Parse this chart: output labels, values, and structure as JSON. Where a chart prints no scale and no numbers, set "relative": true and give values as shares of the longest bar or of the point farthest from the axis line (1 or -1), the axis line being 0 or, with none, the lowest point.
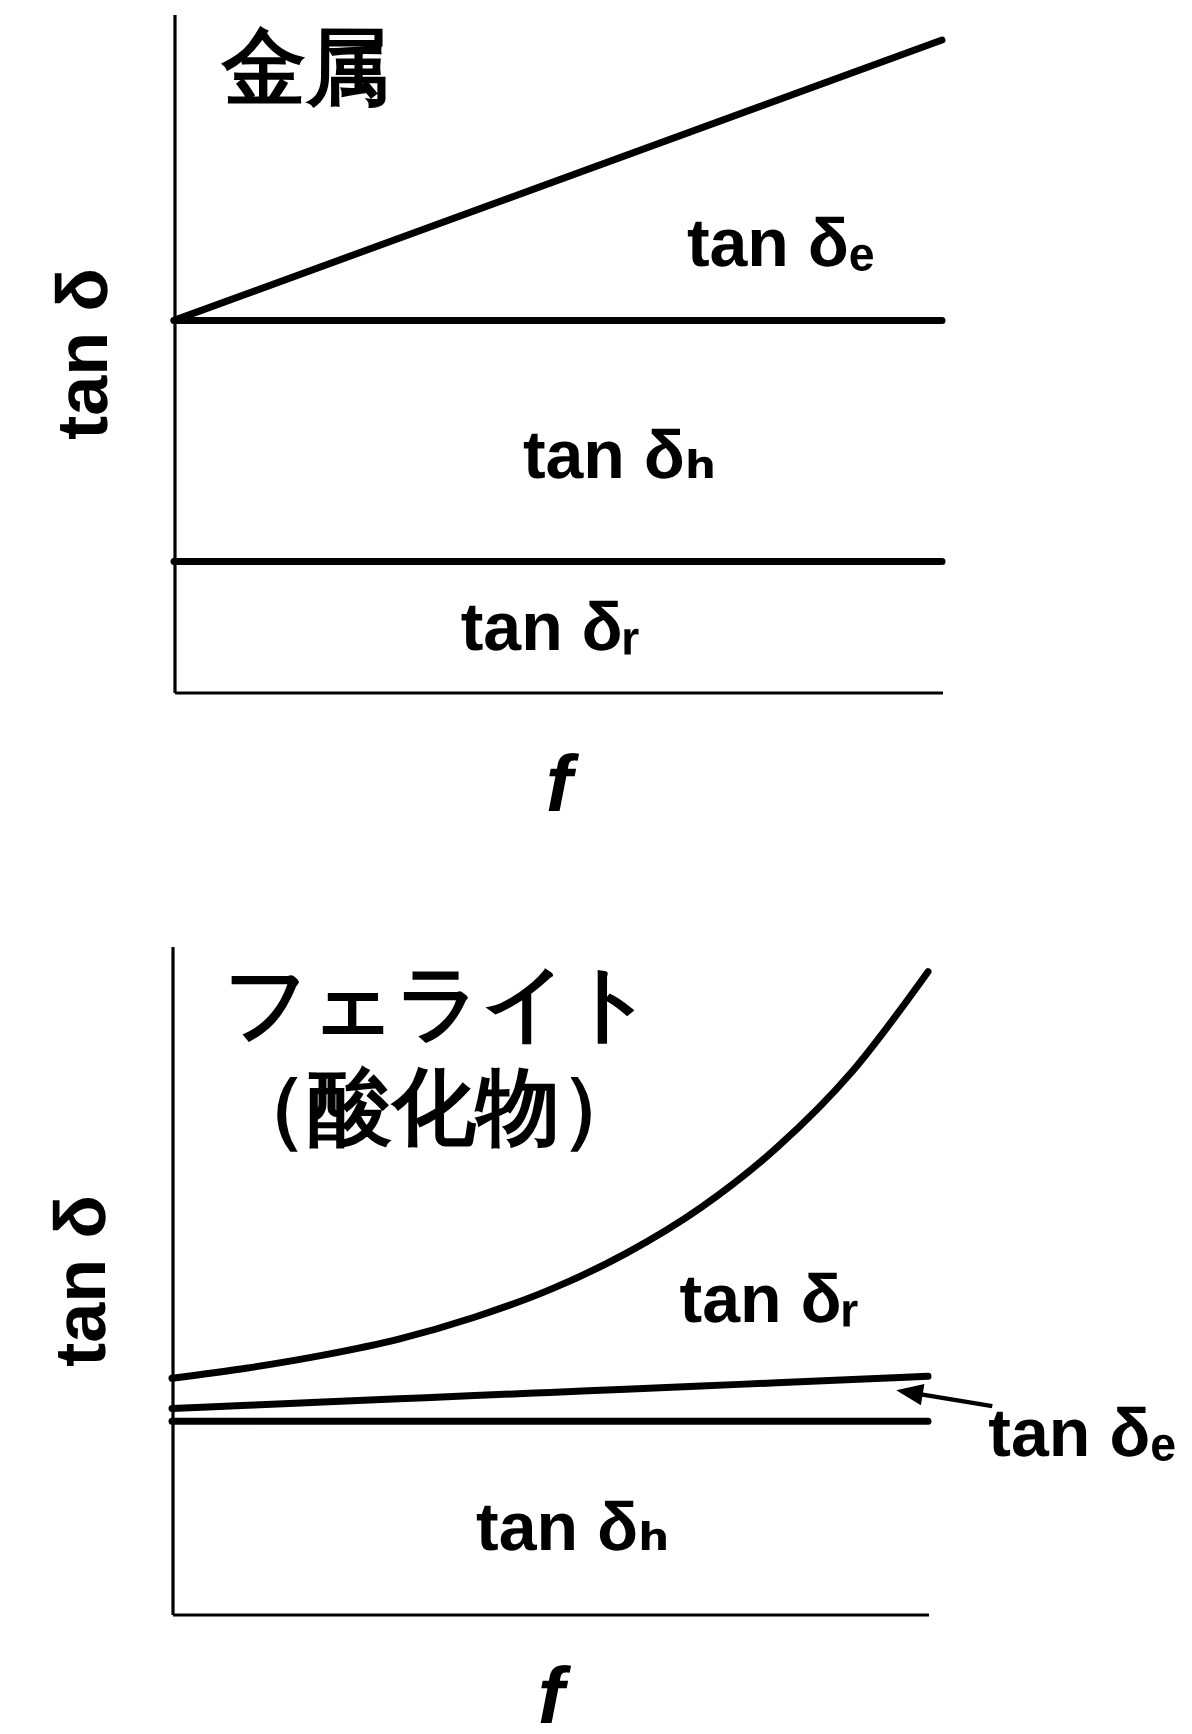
{
  "chart_data": [
    {
      "type": "line",
      "title": "金属",
      "xlabel": "f",
      "ylabel": "tan δ",
      "relative": true,
      "tick_labels": false,
      "categories": [
        null,
        null
      ],
      "series": [
        {
          "color": "#000000",
          "values": [
            0.57,
            1
          ]
        },
        {
          "color": "#000000",
          "values": [
            0.57,
            0.57
          ]
        },
        {
          "color": "#000000",
          "values": [
            0.2,
            0.2
          ]
        }
      ],
      "annotations": [
        "tan δₑ",
        "tan δₕ",
        "tan δᵣ"
      ]
    },
    {
      "type": "line",
      "title": "フェライト（酸化物）",
      "xlabel": "f",
      "ylabel": "tan δ",
      "relative": true,
      "tick_labels": false,
      "categories": [
        null,
        null,
        null,
        null,
        null,
        null,
        null,
        null,
        null,
        null,
        null
      ],
      "series": [
        {
          "color": "#000000",
          "values": [
            0.367,
            0.383,
            0.403,
            0.428,
            0.462,
            0.505,
            0.561,
            0.633,
            0.726,
            0.845,
            1
          ]
        },
        {
          "color": "#000000",
          "values": [
            0.32,
            0.325,
            0.33,
            0.335,
            0.34,
            0.345,
            0.35,
            0.355,
            0.36,
            0.365,
            0.37
          ]
        },
        {
          "color": "#000000",
          "values": [
            0.3,
            0.3,
            0.3,
            0.3,
            0.3,
            0.3,
            0.3,
            0.3,
            0.3,
            0.3,
            0.3
          ]
        }
      ],
      "annotations": [
        "tan δᵣ",
        "tan δₑ",
        "tan δₕ"
      ]
    }
  ]
}
